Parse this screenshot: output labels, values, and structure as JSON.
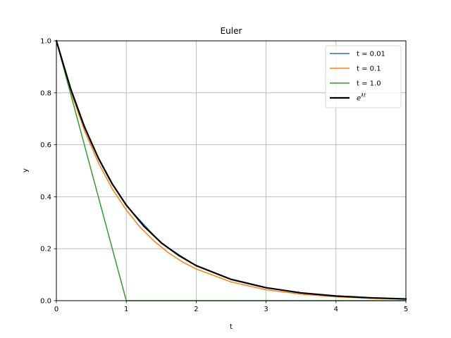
{
  "chart_data": {
    "type": "line",
    "title": "Euler",
    "xlabel": "t",
    "ylabel": "y",
    "xlim": [
      0,
      5
    ],
    "ylim": [
      0,
      1
    ],
    "xticks": [
      "0",
      "1",
      "2",
      "3",
      "4",
      "5"
    ],
    "yticks": [
      "0.0",
      "0.2",
      "0.4",
      "0.6",
      "0.8",
      "1.0"
    ],
    "grid": true,
    "legend_position": "top-right",
    "series": [
      {
        "name": "t = 0.01",
        "color": "#1f77b4",
        "x": [
          0,
          0.25,
          0.5,
          0.75,
          1,
          1.5,
          2,
          2.5,
          3,
          3.5,
          4,
          4.5,
          5
        ],
        "y": [
          1,
          0.777,
          0.605,
          0.471,
          0.366,
          0.221,
          0.134,
          0.081,
          0.049,
          0.03,
          0.018,
          0.011,
          0.0066
        ]
      },
      {
        "name": "t = 0.1",
        "color": "#ff7f0e",
        "x": [
          0,
          0.2,
          0.4,
          0.6,
          0.8,
          1.0,
          1.2,
          1.4,
          1.6,
          1.8,
          2.0,
          2.5,
          3.0,
          3.5,
          4.0,
          4.5,
          5.0
        ],
        "y": [
          1,
          0.81,
          0.656,
          0.531,
          0.43,
          0.349,
          0.282,
          0.229,
          0.185,
          0.15,
          0.122,
          0.072,
          0.042,
          0.025,
          0.015,
          0.0087,
          0.0052
        ]
      },
      {
        "name": "t = 1.0",
        "color": "#2ca02c",
        "x": [
          0,
          1,
          2,
          3,
          4,
          5
        ],
        "y": [
          1,
          0,
          0,
          0,
          0,
          0
        ]
      },
      {
        "name": "e^{λt}",
        "label_base": "e",
        "label_sup": "λt",
        "color": "#000000",
        "x": [
          0,
          0.2,
          0.4,
          0.6,
          0.8,
          1.0,
          1.25,
          1.5,
          1.75,
          2.0,
          2.5,
          3.0,
          3.5,
          4.0,
          4.5,
          5.0
        ],
        "y": [
          1,
          0.819,
          0.67,
          0.549,
          0.449,
          0.368,
          0.287,
          0.223,
          0.174,
          0.135,
          0.082,
          0.05,
          0.03,
          0.018,
          0.011,
          0.0067
        ]
      }
    ]
  }
}
